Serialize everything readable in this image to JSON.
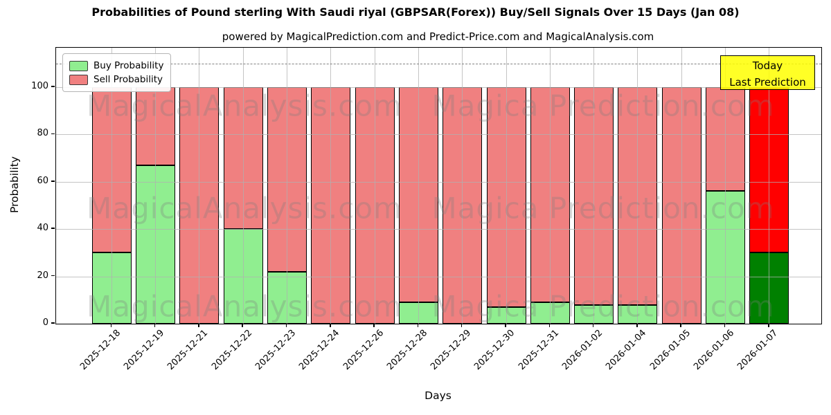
{
  "title": "Probabilities of Pound sterling With Saudi riyal (GBPSAR(Forex)) Buy/Sell Signals Over 15 Days (Jan 08)",
  "subtitle": "powered by MagicalPrediction.com and Predict-Price.com and MagicalAnalysis.com",
  "annotation_box": {
    "line1": "Today",
    "line2": "Last Prediction"
  },
  "legend": {
    "items": [
      {
        "label": "Buy Probability",
        "color": "#90EE90"
      },
      {
        "label": "Sell Probability",
        "color": "#F08080"
      }
    ]
  },
  "watermarks": {
    "left": "MagicalAnalysis.com",
    "right": "Magica Prediction.com"
  },
  "colors": {
    "buy": "#90EE90",
    "sell": "#F08080",
    "buy_last": "#008000",
    "sell_last": "#FF0000",
    "bar_edge": "#000000",
    "grid": "#b0b0b0",
    "dashed_line": "#7f7f7f",
    "annotation_bg": "#FFFF00"
  },
  "chart_data": {
    "type": "bar",
    "stacked": true,
    "title": "Probabilities of Pound sterling With Saudi riyal (GBPSAR(Forex)) Buy/Sell Signals Over 15 Days (Jan 08)",
    "xlabel": "Days",
    "ylabel": "Probability",
    "categories": [
      "2025-12-18",
      "2025-12-19",
      "2025-12-21",
      "2025-12-22",
      "2025-12-23",
      "2025-12-24",
      "2025-12-26",
      "2025-12-28",
      "2025-12-29",
      "2025-12-30",
      "2025-12-31",
      "2026-01-02",
      "2026-01-04",
      "2026-01-05",
      "2026-01-06",
      "2026-01-07"
    ],
    "series": [
      {
        "name": "Buy Probability",
        "values": [
          30,
          67,
          0,
          40,
          22,
          0,
          0,
          9,
          0,
          7,
          9,
          8,
          8,
          0,
          56,
          30
        ]
      },
      {
        "name": "Sell Probability",
        "values": [
          70,
          33,
          100,
          60,
          78,
          100,
          100,
          91,
          100,
          93,
          91,
          92,
          92,
          100,
          44,
          70
        ]
      }
    ],
    "highlight_last_bar": true,
    "ylim": [
      0,
      116.7
    ],
    "yticks": [
      0,
      20,
      40,
      60,
      80,
      100
    ],
    "dashed_line_y": 110,
    "grid": true,
    "legend_position": "upper left"
  }
}
